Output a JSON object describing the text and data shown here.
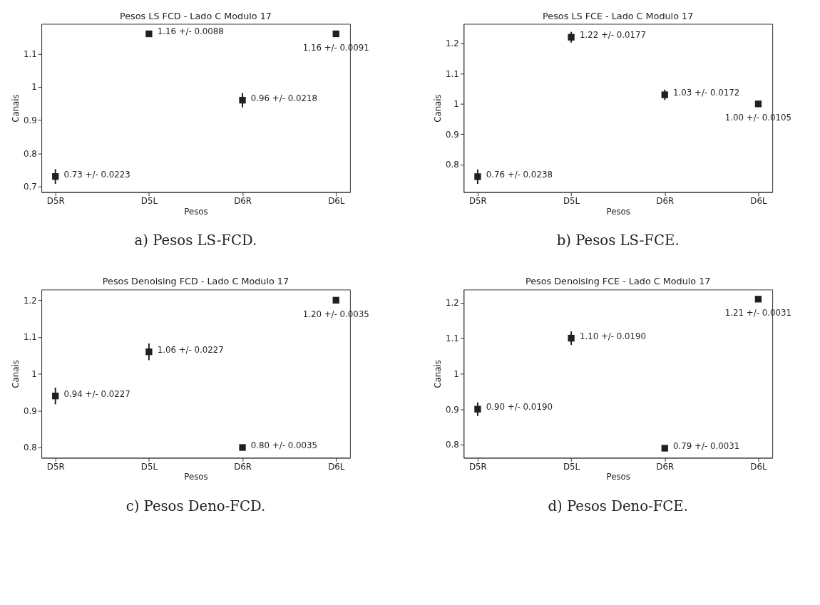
{
  "chart_data": [
    {
      "type": "scatter",
      "title": "Pesos LS FCD - Lado C Modulo 17",
      "xlabel": "Pesos",
      "ylabel": "Canais",
      "categories": [
        "D5R",
        "D5L",
        "D6R",
        "D6L"
      ],
      "values": [
        0.73,
        1.16,
        0.96,
        1.16
      ],
      "errors": [
        0.0223,
        0.0088,
        0.0218,
        0.0091
      ],
      "value_labels": [
        "0.73 +/- 0.0223",
        "1.16 +/- 0.0088",
        "0.96 +/- 0.0218",
        "1.16 +/- 0.0091"
      ],
      "color": "#231f20",
      "marker": "square",
      "ylim": [
        0.683,
        1.19
      ],
      "yticks": [
        0.7,
        0.8,
        0.9,
        1.0,
        1.1
      ],
      "grid": false,
      "annotations": [
        "a) Pesos LS-FCD."
      ]
    },
    {
      "type": "scatter",
      "title": "Pesos LS FCE - Lado C Modulo 17",
      "xlabel": "Pesos",
      "ylabel": "Canais",
      "categories": [
        "D5R",
        "D5L",
        "D6R",
        "D6L"
      ],
      "values": [
        0.76,
        1.22,
        1.03,
        1.0
      ],
      "errors": [
        0.0238,
        0.0177,
        0.0172,
        0.0105
      ],
      "value_labels": [
        "0.76 +/- 0.0238",
        "1.22 +/- 0.0177",
        "1.03 +/- 0.0172",
        "1.00 +/- 0.0105"
      ],
      "color": "#231f20",
      "marker": "square",
      "ylim": [
        0.709,
        1.264
      ],
      "yticks": [
        0.8,
        0.9,
        1.0,
        1.1,
        1.2
      ],
      "grid": false,
      "annotations": [
        "b) Pesos LS-FCE."
      ]
    },
    {
      "type": "scatter",
      "title": "Pesos Denoising FCD - Lado C Modulo 17",
      "xlabel": "Pesos",
      "ylabel": "Canais",
      "categories": [
        "D5R",
        "D5L",
        "D6R",
        "D6L"
      ],
      "values": [
        0.94,
        1.06,
        0.8,
        1.2
      ],
      "errors": [
        0.0227,
        0.0227,
        0.0035,
        0.0035
      ],
      "value_labels": [
        "0.94 +/- 0.0227",
        "1.06 +/- 0.0227",
        "0.80 +/- 0.0035",
        "1.20 +/- 0.0035"
      ],
      "color": "#231f20",
      "marker": "square",
      "ylim": [
        0.772,
        1.229
      ],
      "yticks": [
        0.8,
        0.9,
        1.0,
        1.1,
        1.2
      ],
      "grid": false,
      "annotations": [
        "c) Pesos Deno-FCD."
      ]
    },
    {
      "type": "scatter",
      "title": "Pesos Denoising FCE - Lado C Modulo 17",
      "xlabel": "Pesos",
      "ylabel": "Canais",
      "categories": [
        "D5R",
        "D5L",
        "D6R",
        "D6L"
      ],
      "values": [
        0.9,
        1.1,
        0.79,
        1.21
      ],
      "errors": [
        0.019,
        0.019,
        0.0031,
        0.0031
      ],
      "value_labels": [
        "0.90 +/- 0.0190",
        "1.10 +/- 0.0190",
        "0.79 +/- 0.0031",
        "1.21 +/- 0.0031"
      ],
      "color": "#231f20",
      "marker": "square",
      "ylim": [
        0.763,
        1.237
      ],
      "yticks": [
        0.8,
        0.9,
        1.0,
        1.1,
        1.2
      ],
      "grid": false,
      "annotations": [
        "d) Pesos Deno-FCE."
      ]
    }
  ]
}
